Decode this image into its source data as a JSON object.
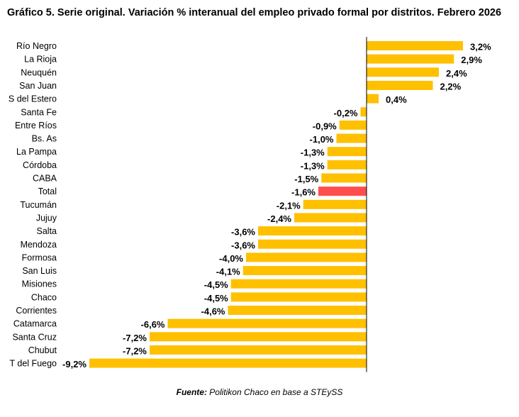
{
  "title": "Gráfico 5. Serie original. Variación % interanual del empleo privado formal por distritos. Febrero 2026",
  "source": {
    "label": "Fuente:",
    "text": " Politikon Chaco en base a STEySS"
  },
  "colors": {
    "bar": "#FFC000",
    "highlight": "#FF4D4D",
    "axis": "#000000"
  },
  "chart_data": {
    "type": "bar",
    "orientation": "horizontal",
    "categories": [
      "Río Negro",
      "La Rioja",
      "Neuquén",
      "San Juan",
      "S del Estero",
      "Santa Fe",
      "Entre Ríos",
      "Bs. As",
      "La Pampa",
      "Córdoba",
      "CABA",
      "Total",
      "Tucumán",
      "Jujuy",
      "Salta",
      "Mendoza",
      "Formosa",
      "San Luis",
      "Misiones",
      "Chaco",
      "Corrientes",
      "Catamarca",
      "Santa Cruz",
      "Chubut",
      "T del Fuego"
    ],
    "values": [
      3.2,
      2.9,
      2.4,
      2.2,
      0.4,
      -0.2,
      -0.9,
      -1.0,
      -1.3,
      -1.3,
      -1.5,
      -1.6,
      -2.1,
      -2.4,
      -3.6,
      -3.6,
      -4.0,
      -4.1,
      -4.5,
      -4.5,
      -4.6,
      -6.6,
      -7.2,
      -7.2,
      -9.2
    ],
    "labels": [
      "3,2%",
      "2,9%",
      "2,4%",
      "2,2%",
      "0,4%",
      "-0,2%",
      "-0,9%",
      "-1,0%",
      "-1,3%",
      "-1,3%",
      "-1,5%",
      "-1,6%",
      "-2,1%",
      "-2,4%",
      "-3,6%",
      "-3,6%",
      "-4,0%",
      "-4,1%",
      "-4,5%",
      "-4,5%",
      "-4,6%",
      "-6,6%",
      "-7,2%",
      "-7,2%",
      "-9,2%"
    ],
    "highlight_category": "Total",
    "grid": false,
    "legend": "none"
  }
}
